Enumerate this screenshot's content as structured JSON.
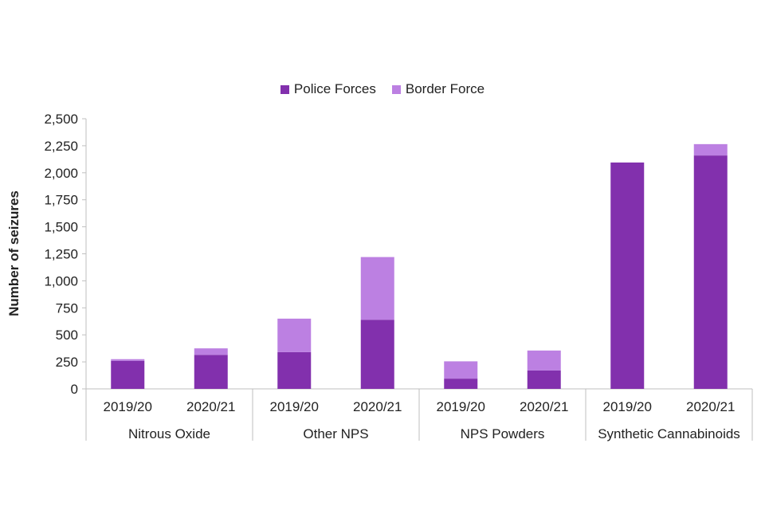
{
  "chart_data": {
    "type": "bar",
    "stacked": true,
    "title": "",
    "xlabel": "",
    "ylabel": "Number of seizures",
    "ylim": [
      0,
      2500
    ],
    "yticks": [
      0,
      250,
      500,
      750,
      1000,
      1250,
      1500,
      1750,
      2000,
      2250,
      2500
    ],
    "ytick_labels": [
      "0",
      "250",
      "500",
      "750",
      "1,000",
      "1,250",
      "1,500",
      "1,750",
      "2,000",
      "2,250",
      "2,500"
    ],
    "legend_position": "top-center",
    "grid": false,
    "groups": [
      {
        "label": "Nitrous Oxide",
        "categories": [
          "2019/20",
          "2020/21"
        ]
      },
      {
        "label": "Other NPS",
        "categories": [
          "2019/20",
          "2020/21"
        ]
      },
      {
        "label": "NPS Powders",
        "categories": [
          "2019/20",
          "2020/21"
        ]
      },
      {
        "label": "Synthetic Cannabinoids",
        "categories": [
          "2019/20",
          "2020/21"
        ]
      }
    ],
    "series": [
      {
        "name": "Police Forces",
        "color": "#8230AD",
        "values": [
          260,
          315,
          340,
          640,
          95,
          170,
          2095,
          2160
        ]
      },
      {
        "name": "Border Force",
        "color": "#BC80E2",
        "values": [
          15,
          60,
          310,
          580,
          160,
          185,
          0,
          105
        ]
      }
    ]
  }
}
